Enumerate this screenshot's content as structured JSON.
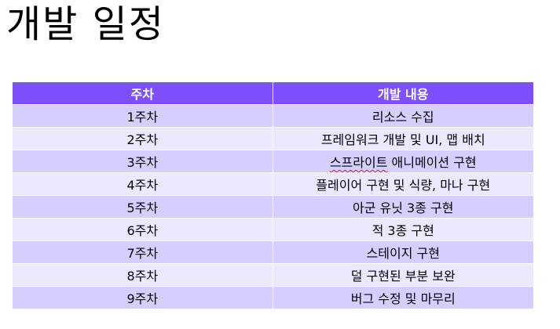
{
  "title": "개발 일정",
  "table": {
    "headers": [
      "주차",
      "개발 내용"
    ],
    "rows": [
      {
        "week": "1주차",
        "content": "리소스 수집"
      },
      {
        "week": "2주차",
        "content": "프레임워크 개발 및 UI, 맵 배치"
      },
      {
        "week": "3주차",
        "content_pre": "스프라이트",
        "content_post": " 애니메이션 구현"
      },
      {
        "week": "4주차",
        "content": "플레이어 구현 및 식량, 마나 구현"
      },
      {
        "week": "5주차",
        "content": "아군 유닛 3종 구현"
      },
      {
        "week": "6주차",
        "content": "적 3종 구현"
      },
      {
        "week": "7주차",
        "content": "스테이지 구현"
      },
      {
        "week": "8주차",
        "content": "덜 구현된 부분 보완"
      },
      {
        "week": "9주차",
        "content": "버그 수정 및 마무리"
      }
    ]
  }
}
